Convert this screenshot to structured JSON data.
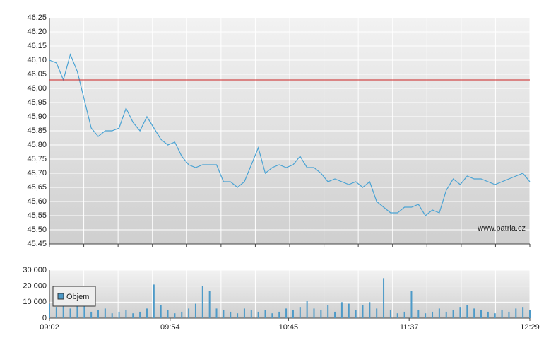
{
  "chart_data": [
    {
      "type": "line",
      "x": [
        "09:02",
        "09:05",
        "09:08",
        "09:11",
        "09:14",
        "09:17",
        "09:20",
        "09:23",
        "09:26",
        "09:29",
        "09:32",
        "09:35",
        "09:38",
        "09:41",
        "09:44",
        "09:47",
        "09:50",
        "09:53",
        "09:56",
        "09:59",
        "10:02",
        "10:05",
        "10:08",
        "10:11",
        "10:14",
        "10:17",
        "10:20",
        "10:23",
        "10:26",
        "10:29",
        "10:32",
        "10:35",
        "10:38",
        "10:41",
        "10:44",
        "10:47",
        "10:50",
        "10:53",
        "10:56",
        "10:59",
        "11:02",
        "11:05",
        "11:08",
        "11:11",
        "11:14",
        "11:17",
        "11:20",
        "11:23",
        "11:26",
        "11:29",
        "11:32",
        "11:35",
        "11:38",
        "11:41",
        "11:44",
        "11:47",
        "11:50",
        "11:53",
        "11:56",
        "11:59",
        "12:02",
        "12:05",
        "12:08",
        "12:11",
        "12:14",
        "12:17",
        "12:20",
        "12:23",
        "12:26",
        "12:29"
      ],
      "values": [
        46.1,
        46.09,
        46.03,
        46.12,
        46.06,
        45.96,
        45.86,
        45.83,
        45.85,
        45.85,
        45.86,
        45.93,
        45.88,
        45.85,
        45.9,
        45.86,
        45.82,
        45.8,
        45.81,
        45.76,
        45.73,
        45.72,
        45.73,
        45.73,
        45.73,
        45.67,
        45.67,
        45.65,
        45.67,
        45.73,
        45.79,
        45.7,
        45.72,
        45.73,
        45.72,
        45.73,
        45.76,
        45.72,
        45.72,
        45.7,
        45.67,
        45.68,
        45.67,
        45.66,
        45.67,
        45.65,
        45.67,
        45.6,
        45.58,
        45.56,
        45.56,
        45.58,
        45.58,
        45.59,
        45.55,
        45.57,
        45.56,
        45.64,
        45.68,
        45.66,
        45.69,
        45.68,
        45.68,
        45.67,
        45.66,
        45.67,
        45.68,
        45.69,
        45.7,
        45.67
      ],
      "color": "#4aa3d4",
      "xlim": [
        "09:02",
        "12:29"
      ],
      "ylim": [
        45.45,
        46.25
      ],
      "yticks": [
        {
          "value": 45.45,
          "label": "45,45"
        },
        {
          "value": 45.5,
          "label": "45,50"
        },
        {
          "value": 45.55,
          "label": "45,55"
        },
        {
          "value": 45.6,
          "label": "45,60"
        },
        {
          "value": 45.65,
          "label": "45,65"
        },
        {
          "value": 45.7,
          "label": "45,70"
        },
        {
          "value": 45.75,
          "label": "45,75"
        },
        {
          "value": 45.8,
          "label": "45,80"
        },
        {
          "value": 45.85,
          "label": "45,85"
        },
        {
          "value": 45.9,
          "label": "45,90"
        },
        {
          "value": 45.95,
          "label": "45,95"
        },
        {
          "value": 46.0,
          "label": "46,00"
        },
        {
          "value": 46.05,
          "label": "46,05"
        },
        {
          "value": 46.1,
          "label": "46,10"
        },
        {
          "value": 46.15,
          "label": "46,15"
        },
        {
          "value": 46.2,
          "label": "46,20"
        },
        {
          "value": 46.25,
          "label": "46,25"
        }
      ],
      "reference_line": {
        "value": 46.03,
        "color": "#cc2222"
      },
      "watermark": "www.patria.cz",
      "grid": true
    },
    {
      "type": "bar",
      "x": [
        "09:02",
        "09:05",
        "09:08",
        "09:11",
        "09:14",
        "09:17",
        "09:20",
        "09:23",
        "09:26",
        "09:29",
        "09:32",
        "09:35",
        "09:38",
        "09:41",
        "09:44",
        "09:47",
        "09:50",
        "09:53",
        "09:56",
        "09:59",
        "10:02",
        "10:05",
        "10:08",
        "10:11",
        "10:14",
        "10:17",
        "10:20",
        "10:23",
        "10:26",
        "10:29",
        "10:32",
        "10:35",
        "10:38",
        "10:41",
        "10:44",
        "10:47",
        "10:50",
        "10:53",
        "10:56",
        "10:59",
        "11:02",
        "11:05",
        "11:08",
        "11:11",
        "11:14",
        "11:17",
        "11:20",
        "11:23",
        "11:26",
        "11:29",
        "11:32",
        "11:35",
        "11:38",
        "11:41",
        "11:44",
        "11:47",
        "11:50",
        "11:53",
        "11:56",
        "11:59",
        "12:02",
        "12:05",
        "12:08",
        "12:11",
        "12:14",
        "12:17",
        "12:20",
        "12:23",
        "12:26",
        "12:29"
      ],
      "series": [
        {
          "name": "Objem",
          "color": "#4d9ac8",
          "values": [
            9000,
            7000,
            12000,
            6000,
            10000,
            8000,
            4000,
            5000,
            6000,
            3000,
            4000,
            5000,
            3000,
            4000,
            6000,
            21000,
            8000,
            5000,
            3000,
            4000,
            6000,
            9000,
            20000,
            17000,
            6000,
            5000,
            4000,
            3000,
            6000,
            5000,
            4000,
            5000,
            3000,
            4000,
            6000,
            5000,
            7000,
            11000,
            6000,
            5000,
            8000,
            4000,
            10000,
            9000,
            5000,
            8000,
            10000,
            6000,
            25000,
            5000,
            3000,
            4000,
            17000,
            5000,
            3000,
            4000,
            6000,
            4000,
            5000,
            7000,
            8000,
            6000,
            5000,
            4000,
            3000,
            5000,
            4000,
            6000,
            7000,
            5000
          ]
        }
      ],
      "xlim": [
        "09:02",
        "12:29"
      ],
      "xticks": [
        "09:02",
        "09:54",
        "10:45",
        "11:37",
        "12:29"
      ],
      "ylim": [
        0,
        30000
      ],
      "yticks": [
        0,
        {
          "value": 10000,
          "label": "10 000"
        },
        {
          "value": 20000,
          "label": "20 000"
        },
        {
          "value": 30000,
          "label": "30 000"
        }
      ],
      "grid": true
    }
  ]
}
